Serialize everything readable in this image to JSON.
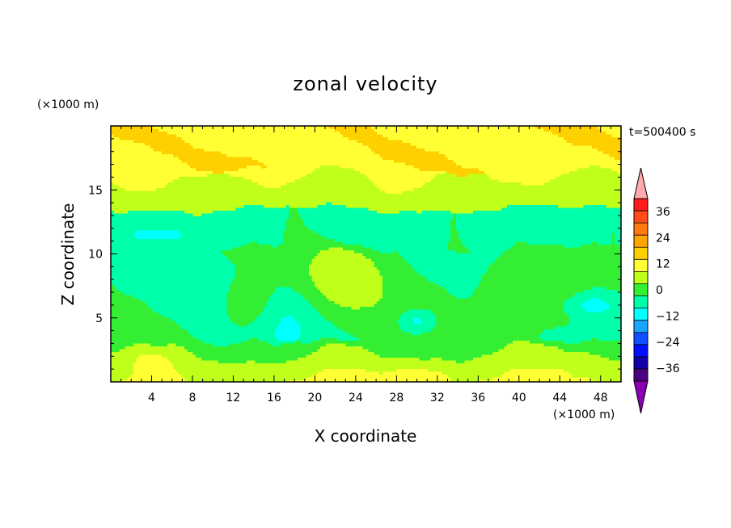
{
  "chart_data": {
    "type": "heatmap",
    "title": "zonal velocity",
    "xlabel": "X coordinate",
    "ylabel": "Z coordinate",
    "x_unit": "(×1000 m)",
    "y_unit": "(×1000 m)",
    "time_label": "t=500400 s",
    "xlim": [
      0,
      50
    ],
    "ylim": [
      0,
      20
    ],
    "xticks": [
      "4",
      "8",
      "12",
      "16",
      "20",
      "24",
      "28",
      "32",
      "36",
      "40",
      "44",
      "48"
    ],
    "xtick_values": [
      4,
      8,
      12,
      16,
      20,
      24,
      28,
      32,
      36,
      40,
      44,
      48
    ],
    "yticks": [
      "5",
      "10",
      "15"
    ],
    "ytick_values": [
      5,
      10,
      15
    ],
    "colorbar": {
      "labels": [
        "36",
        "24",
        "12",
        "0",
        "−12",
        "−24",
        "−36"
      ],
      "label_values": [
        36,
        24,
        12,
        0,
        -12,
        -24,
        -36
      ],
      "levels": [
        42,
        36,
        30,
        24,
        18,
        12,
        6,
        0,
        -6,
        -12,
        -18,
        -24,
        -30,
        -36,
        -42
      ],
      "colors": [
        "#ff1c1c",
        "#ff4c1a",
        "#ff7a10",
        "#ffa500",
        "#ffd000",
        "#ffff33",
        "#bfff1a",
        "#33ee33",
        "#00ffaa",
        "#00ffff",
        "#1aa6ff",
        "#1050ff",
        "#0010ff",
        "#1000a8",
        "#4b007f"
      ],
      "over_color": "#ffaaaa",
      "under_color": "#8a00b0"
    },
    "field_description_values": {
      "upper_band_z_16_20": 10,
      "band_z_13_16": 2,
      "band_z_10_13": -8,
      "mid_z_5_10": -6,
      "lower_z_0_3": 6,
      "jet_core_z_11_5": -16,
      "blob_x_30_z_5": -16
    }
  }
}
